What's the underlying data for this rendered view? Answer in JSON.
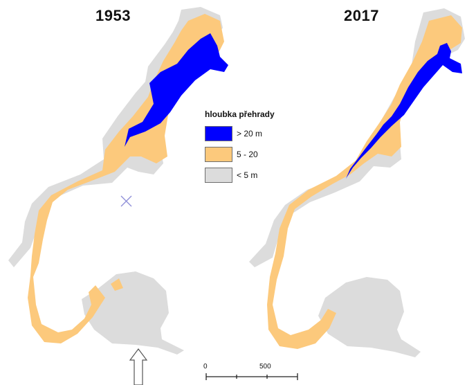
{
  "panels": [
    {
      "year": "1953"
    },
    {
      "year": "2017"
    }
  ],
  "legend": {
    "title": "hloubka přehrady",
    "items": [
      {
        "label": "> 20 m",
        "color": "#0000ff"
      },
      {
        "label": "5 - 20",
        "color": "#fcc97c"
      },
      {
        "label": "< 5 m",
        "color": "#dcdcdc"
      }
    ]
  },
  "scale_bar": {
    "labels": [
      "0",
      "500"
    ]
  },
  "north_arrow": {
    "icon": "north-arrow-icon"
  },
  "marker": {
    "icon": "cross-marker-icon"
  },
  "colors": {
    "deep": "#0000ff",
    "mid": "#fcc97c",
    "shallow": "#dcdcdc",
    "background": "#ffffff"
  }
}
